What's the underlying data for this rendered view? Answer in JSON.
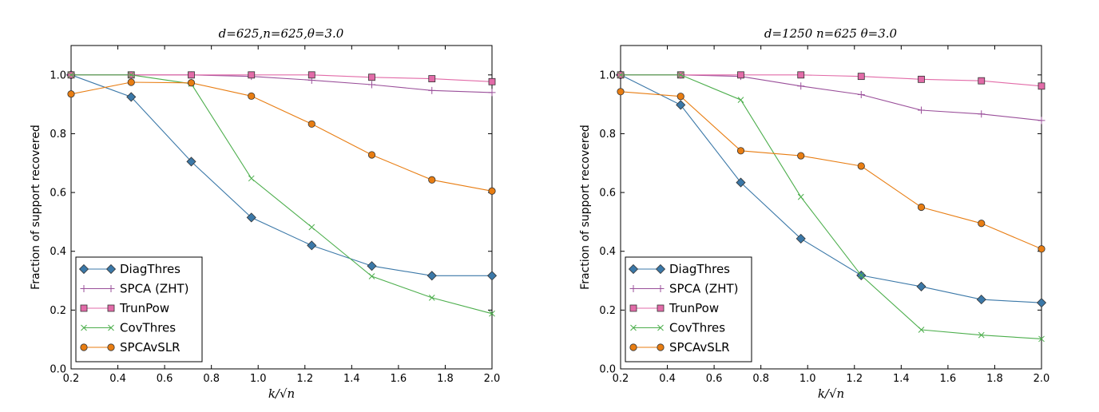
{
  "chart_data": [
    {
      "type": "line",
      "title": "d=625,n=625,θ=3.0",
      "xlabel": "k/√n",
      "ylabel": "Fraction of support recovered",
      "xlim": [
        0.2,
        2.0
      ],
      "ylim": [
        0.0,
        1.1
      ],
      "xticks": [
        "0.2",
        "0.4",
        "0.6",
        "0.8",
        "1.0",
        "1.2",
        "1.4",
        "1.6",
        "1.8",
        "2.0"
      ],
      "yticks": [
        "0.0",
        "0.2",
        "0.4",
        "0.6",
        "0.8",
        "1.0"
      ],
      "grid": false,
      "legend_position": "lower-left",
      "x": [
        0.2,
        0.457,
        0.714,
        0.971,
        1.229,
        1.486,
        1.743,
        2.0
      ],
      "series": [
        {
          "name": "DiagThres",
          "color": "#3b78a8",
          "marker": "diamond",
          "values": [
            1.0,
            0.925,
            0.705,
            0.515,
            0.42,
            0.35,
            0.317,
            0.317
          ]
        },
        {
          "name": "SPCA (ZHT)",
          "color": "#9a4f9a",
          "marker": "plus",
          "values": [
            1.0,
            1.0,
            1.0,
            0.995,
            0.982,
            0.967,
            0.947,
            0.94
          ]
        },
        {
          "name": "TrunPow",
          "color": "#e26ba8",
          "marker": "square",
          "values": [
            1.0,
            1.0,
            1.0,
            1.0,
            1.0,
            0.992,
            0.987,
            0.977
          ]
        },
        {
          "name": "CovThres",
          "color": "#4cae4c",
          "marker": "x",
          "values": [
            1.0,
            1.0,
            0.97,
            0.648,
            0.482,
            0.315,
            0.242,
            0.188
          ]
        },
        {
          "name": "SPCAvSLR",
          "color": "#e87d12",
          "marker": "circle",
          "values": [
            0.935,
            0.975,
            0.973,
            0.928,
            0.833,
            0.728,
            0.643,
            0.605
          ]
        }
      ]
    },
    {
      "type": "line",
      "title": "d=1250  n=625  θ=3.0",
      "xlabel": "k/√n",
      "ylabel": "Fraction of support recovered",
      "xlim": [
        0.2,
        2.0
      ],
      "ylim": [
        0.0,
        1.1
      ],
      "xticks": [
        "0.2",
        "0.4",
        "0.6",
        "0.8",
        "1.0",
        "1.2",
        "1.4",
        "1.6",
        "1.8",
        "2.0"
      ],
      "yticks": [
        "0.0",
        "0.2",
        "0.4",
        "0.6",
        "0.8",
        "1.0"
      ],
      "grid": false,
      "legend_position": "lower-left",
      "x": [
        0.2,
        0.457,
        0.714,
        0.971,
        1.229,
        1.486,
        1.743,
        2.0
      ],
      "series": [
        {
          "name": "DiagThres",
          "color": "#3b78a8",
          "marker": "diamond",
          "values": [
            1.0,
            0.898,
            0.634,
            0.443,
            0.318,
            0.28,
            0.236,
            0.225
          ]
        },
        {
          "name": "SPCA (ZHT)",
          "color": "#9a4f9a",
          "marker": "plus",
          "values": [
            1.0,
            1.0,
            0.995,
            0.962,
            0.933,
            0.88,
            0.867,
            0.845
          ]
        },
        {
          "name": "TrunPow",
          "color": "#e26ba8",
          "marker": "square",
          "values": [
            1.0,
            1.0,
            1.0,
            1.0,
            0.995,
            0.985,
            0.98,
            0.962
          ]
        },
        {
          "name": "CovThres",
          "color": "#4cae4c",
          "marker": "x",
          "values": [
            1.0,
            1.0,
            0.915,
            0.585,
            0.318,
            0.133,
            0.115,
            0.102
          ]
        },
        {
          "name": "SPCAvSLR",
          "color": "#e87d12",
          "marker": "circle",
          "values": [
            0.943,
            0.927,
            0.742,
            0.725,
            0.69,
            0.55,
            0.495,
            0.408
          ]
        }
      ]
    }
  ]
}
